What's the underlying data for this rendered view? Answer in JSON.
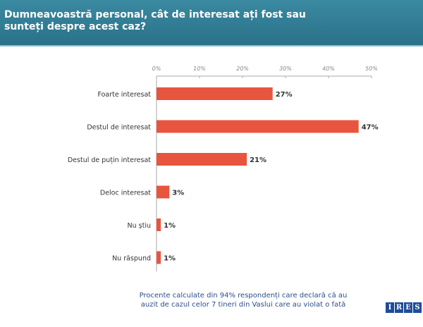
{
  "header": {
    "title": "Dumneavoastră personal, cât de interesat ați fost sau sunteți despre acest caz?"
  },
  "chart_data": {
    "type": "bar",
    "orientation": "horizontal",
    "title": "Dumneavoastră personal, cât de interesat ați fost sau sunteți despre acest caz?",
    "categories": [
      "Foarte interesat",
      "Destul de interesat",
      "Destul de puțin interesat",
      "Deloc interesat",
      "Nu știu",
      "Nu răspund"
    ],
    "values": [
      27,
      47,
      21,
      3,
      1,
      1
    ],
    "value_labels": [
      "27%",
      "47%",
      "21%",
      "3%",
      "1%",
      "1%"
    ],
    "xlim": [
      0,
      50
    ],
    "ticks": [
      "0%",
      "10%",
      "20%",
      "30%",
      "40%",
      "50%"
    ],
    "tick_values": [
      0,
      10,
      20,
      30,
      40,
      50
    ],
    "bar_color": "#e8553f",
    "legend": "none"
  },
  "footer": {
    "note": "Procente calculate din 94% respondenți care declară că au auzit de cazul celor 7 tineri din Vaslui care au violat o fată",
    "logo": [
      "I",
      "R",
      "E",
      "S"
    ]
  }
}
